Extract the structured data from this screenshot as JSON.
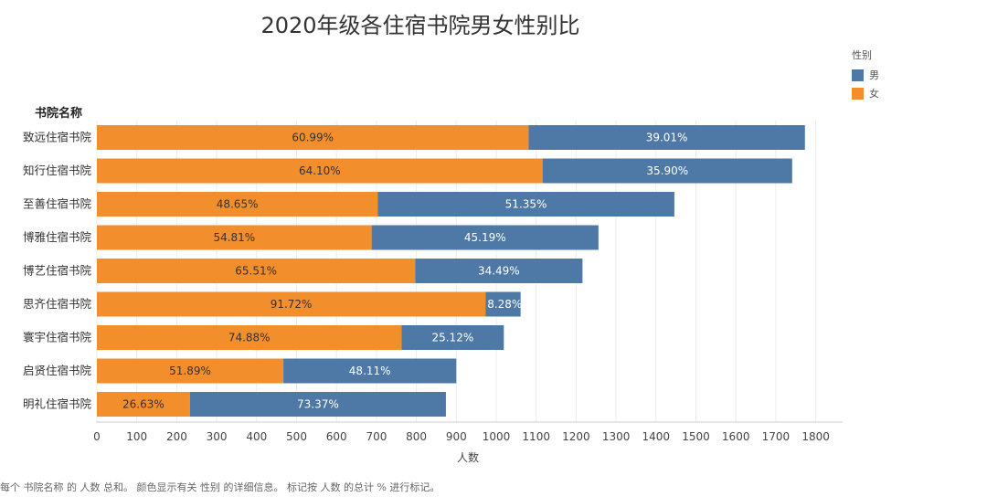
{
  "chart_data": {
    "type": "bar",
    "orientation": "horizontal",
    "stacked": true,
    "title": "2020年级各住宿书院男女性别比",
    "row_header": "书院名称",
    "xlabel": "人数",
    "xlim": [
      0,
      1850
    ],
    "xticks": [
      0,
      100,
      200,
      300,
      400,
      500,
      600,
      700,
      800,
      900,
      1000,
      1100,
      1200,
      1300,
      1400,
      1500,
      1600,
      1700,
      1800
    ],
    "legend": {
      "title": "性别",
      "position": "top-right",
      "items": [
        {
          "name": "男",
          "color": "#4e79a7"
        },
        {
          "name": "女",
          "color": "#f28e2b"
        }
      ]
    },
    "categories": [
      "致远住宿书院",
      "知行住宿书院",
      "至善住宿书院",
      "博雅住宿书院",
      "博艺住宿书院",
      "思齐住宿书院",
      "寰宇住宿书院",
      "启贤住宿书院",
      "明礼住宿书院"
    ],
    "totals": [
      1773,
      1741,
      1446,
      1256,
      1216,
      1061,
      1019,
      900,
      874
    ],
    "series": [
      {
        "name": "女",
        "color": "#f28e2b",
        "values": [
          1081,
          1116,
          703,
          688,
          797,
          973,
          763,
          467,
          233
        ],
        "labels": [
          "60.99%",
          "64.10%",
          "48.65%",
          "54.81%",
          "65.51%",
          "91.72%",
          "74.88%",
          "51.89%",
          "26.63%"
        ]
      },
      {
        "name": "男",
        "color": "#4e79a7",
        "values": [
          692,
          625,
          743,
          568,
          419,
          88,
          256,
          433,
          641
        ],
        "labels": [
          "39.01%",
          "35.90%",
          "51.35%",
          "45.19%",
          "34.49%",
          "8.28%",
          "25.12%",
          "48.11%",
          "73.37%"
        ]
      }
    ]
  },
  "footnote": "每个 书院名称 的 人数 总和。 颜色显示有关 性别 的详细信息。 标记按 人数 的总计 % 进行标记。"
}
